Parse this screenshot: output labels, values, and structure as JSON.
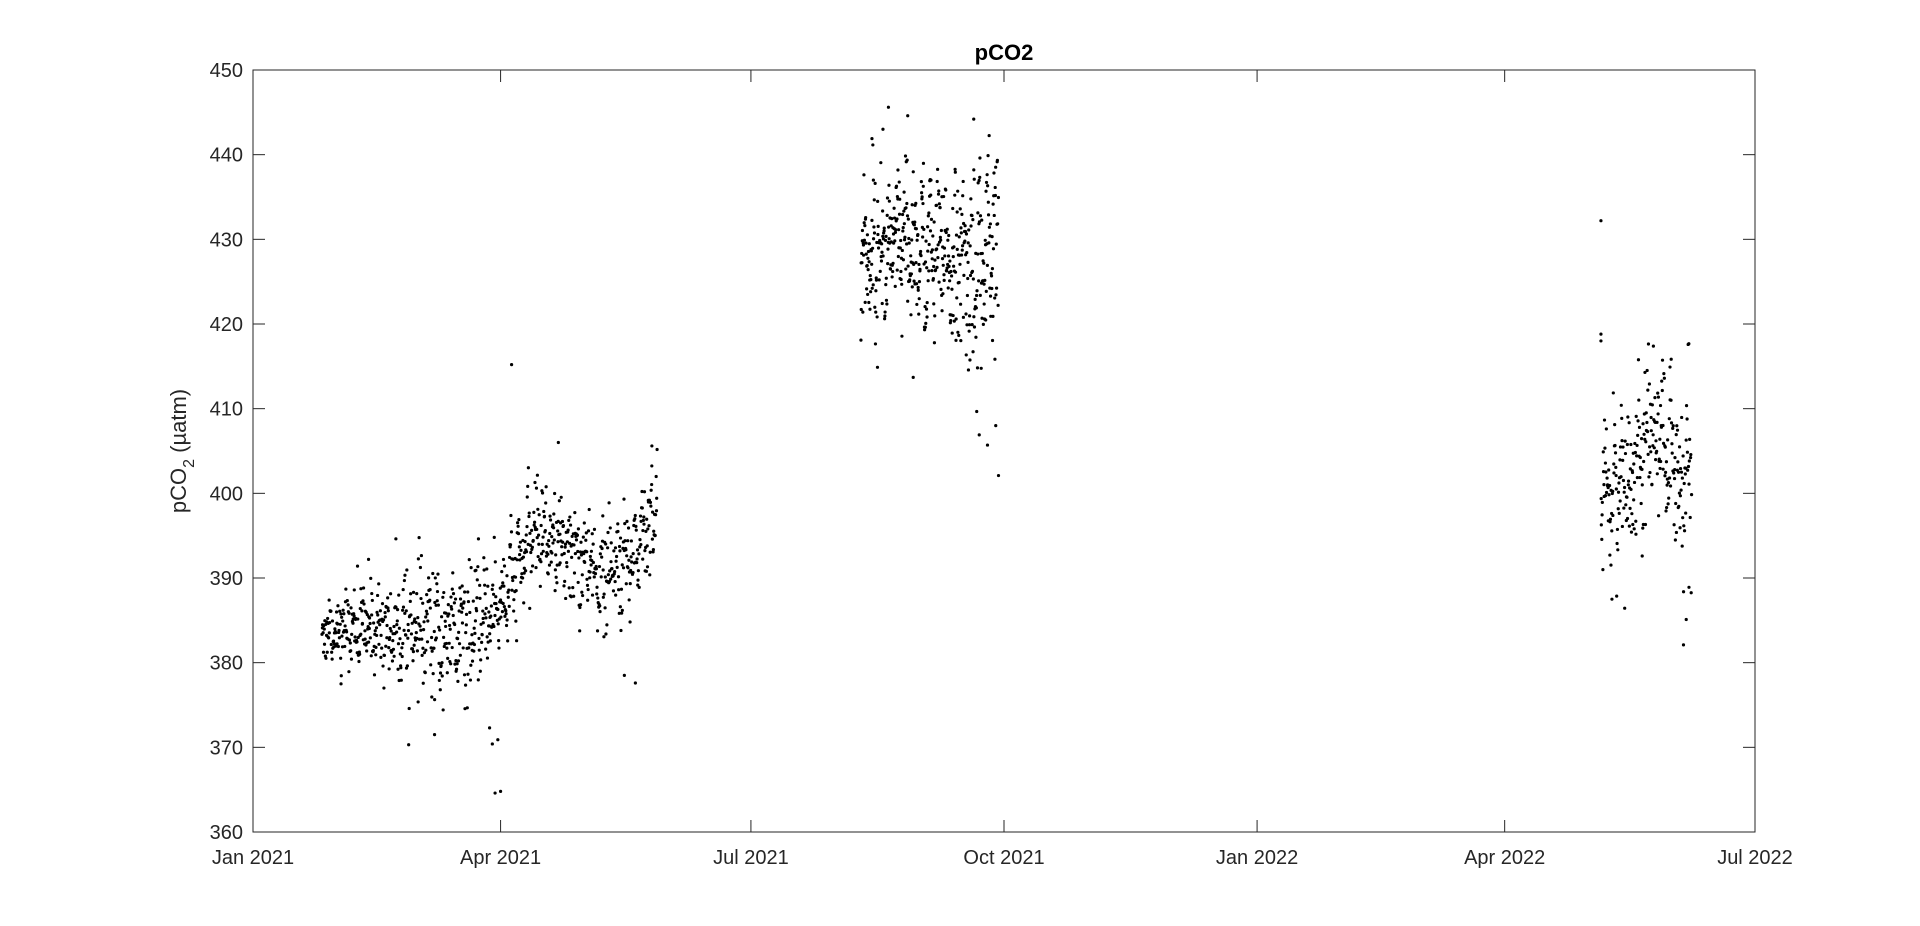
{
  "chart_data": {
    "type": "scatter",
    "title": "pCO2",
    "xlabel": "",
    "ylabel": {
      "base": "pCO",
      "subscript": "2",
      "suffix": " (µatm)"
    },
    "xlim": [
      "2021-01-01",
      "2022-07-01"
    ],
    "ylim": [
      360,
      450
    ],
    "x_ticks": [
      {
        "date": "2021-01-01",
        "label": "Jan 2021"
      },
      {
        "date": "2021-04-01",
        "label": "Apr 2021"
      },
      {
        "date": "2021-07-01",
        "label": "Jul 2021"
      },
      {
        "date": "2021-10-01",
        "label": "Oct 2021"
      },
      {
        "date": "2022-01-01",
        "label": "Jan 2022"
      },
      {
        "date": "2022-04-01",
        "label": "Apr 2022"
      },
      {
        "date": "2022-07-01",
        "label": "Jul 2022"
      }
    ],
    "y_ticks": [
      360,
      370,
      380,
      390,
      400,
      410,
      420,
      430,
      440,
      450
    ],
    "grid": false,
    "marker_color": "#000000",
    "segments": [
      {
        "start": "2021-01-26",
        "end": "2021-05-28",
        "count": 900,
        "trend": [
          [
            "2021-01-26",
            384
          ],
          [
            "2021-02-25",
            384
          ],
          [
            "2021-03-20",
            383
          ],
          [
            "2021-04-03",
            388
          ],
          [
            "2021-04-14",
            396
          ],
          [
            "2021-04-26",
            393
          ],
          [
            "2021-05-08",
            390
          ],
          [
            "2021-05-18",
            392
          ],
          [
            "2021-05-28",
            399
          ]
        ],
        "spread": [
          [
            "2021-01-26",
            2.2
          ],
          [
            "2021-02-15",
            2.8
          ],
          [
            "2021-02-25",
            4.5
          ],
          [
            "2021-03-25",
            4.5
          ],
          [
            "2021-04-10",
            3.5
          ],
          [
            "2021-05-28",
            4.0
          ]
        ]
      },
      {
        "start": "2021-08-10",
        "end": "2021-09-29",
        "count": 480,
        "trend": [
          [
            "2021-08-10",
            428
          ],
          [
            "2021-08-25",
            429
          ],
          [
            "2021-09-10",
            428
          ],
          [
            "2021-09-20",
            426
          ],
          [
            "2021-09-29",
            428
          ]
        ],
        "spread": [
          [
            "2021-08-10",
            5.5
          ],
          [
            "2021-09-12",
            5.5
          ],
          [
            "2021-09-20",
            8.0
          ],
          [
            "2021-09-29",
            7.0
          ]
        ]
      },
      {
        "start": "2022-05-06",
        "end": "2022-06-08",
        "count": 260,
        "trend": [
          [
            "2022-05-06",
            400
          ],
          [
            "2022-05-16",
            402
          ],
          [
            "2022-05-24",
            408
          ],
          [
            "2022-06-01",
            403
          ],
          [
            "2022-06-08",
            403
          ]
        ],
        "spread": [
          [
            "2022-05-06",
            5.0
          ],
          [
            "2022-06-08",
            6.5
          ]
        ]
      }
    ],
    "outliers": [
      {
        "x": "2021-04-05",
        "y": 415.2
      },
      {
        "x": "2021-03-30",
        "y": 364.6
      },
      {
        "x": "2021-04-01",
        "y": 364.8
      },
      {
        "x": "2021-03-28",
        "y": 372.3
      },
      {
        "x": "2021-03-29",
        "y": 370.4
      },
      {
        "x": "2021-03-31",
        "y": 370.9
      },
      {
        "x": "2021-02-12",
        "y": 392.2
      },
      {
        "x": "2021-02-08",
        "y": 391.4
      },
      {
        "x": "2021-02-02",
        "y": 377.5
      },
      {
        "x": "2021-03-08",
        "y": 371.5
      },
      {
        "x": "2021-04-22",
        "y": 406.0
      },
      {
        "x": "2021-05-20",
        "y": 377.6
      },
      {
        "x": "2021-05-16",
        "y": 378.5
      },
      {
        "x": "2021-05-26",
        "y": 405.6
      },
      {
        "x": "2021-08-20",
        "y": 445.6
      },
      {
        "x": "2021-08-27",
        "y": 444.6
      },
      {
        "x": "2021-08-14",
        "y": 441.9
      },
      {
        "x": "2021-08-18",
        "y": 443.0
      },
      {
        "x": "2021-08-10",
        "y": 418.1
      },
      {
        "x": "2021-09-20",
        "y": 444.2
      },
      {
        "x": "2021-08-29",
        "y": 413.7
      },
      {
        "x": "2021-09-22",
        "y": 406.9
      },
      {
        "x": "2021-09-25",
        "y": 405.7
      },
      {
        "x": "2021-09-29",
        "y": 402.1
      },
      {
        "x": "2021-09-28",
        "y": 408.0
      },
      {
        "x": "2022-05-06",
        "y": 432.2
      },
      {
        "x": "2022-05-10",
        "y": 387.5
      },
      {
        "x": "2022-06-05",
        "y": 382.1
      },
      {
        "x": "2022-06-06",
        "y": 385.1
      },
      {
        "x": "2022-06-07",
        "y": 388.9
      },
      {
        "x": "2022-05-06",
        "y": 418.8
      },
      {
        "x": "2022-05-06",
        "y": 418.0
      },
      {
        "x": "2022-05-21",
        "y": 392.6
      }
    ]
  }
}
